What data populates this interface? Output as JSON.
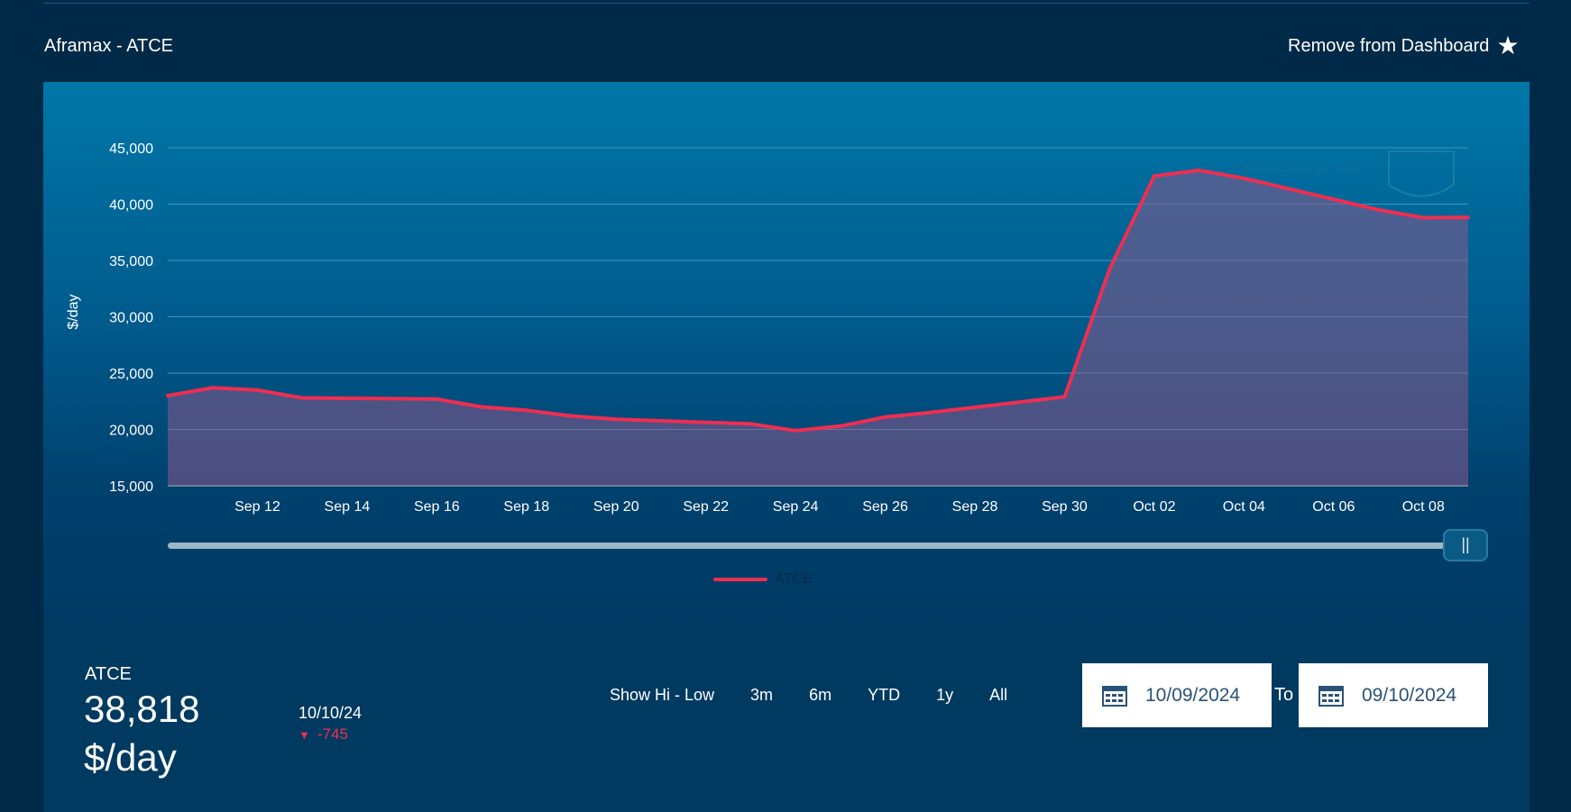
{
  "header": {
    "title": "Aframax - ATCE",
    "remove_label": "Remove from Dashboard",
    "star_icon": "star-icon"
  },
  "watermark": "balticexchange.com",
  "slider": {
    "start": 0.0,
    "end": 1.0,
    "handle_glyph": "||"
  },
  "chart_data": {
    "type": "area",
    "xlabel": "",
    "ylabel": "$/day",
    "ylim": [
      15000,
      45000
    ],
    "yticks": [
      15000,
      20000,
      25000,
      30000,
      35000,
      40000,
      45000
    ],
    "ytick_labels": [
      "15,000",
      "20,000",
      "25,000",
      "30,000",
      "35,000",
      "40,000",
      "45,000"
    ],
    "xlim": [
      "2024-09-10",
      "2024-10-09"
    ],
    "xticks": [
      "2024-09-12",
      "2024-09-14",
      "2024-09-16",
      "2024-09-18",
      "2024-09-20",
      "2024-09-22",
      "2024-09-24",
      "2024-09-26",
      "2024-09-28",
      "2024-09-30",
      "2024-10-02",
      "2024-10-04",
      "2024-10-06",
      "2024-10-08"
    ],
    "xtick_labels": [
      "Sep 12",
      "Sep 14",
      "Sep 16",
      "Sep 18",
      "Sep 20",
      "Sep 22",
      "Sep 24",
      "Sep 26",
      "Sep 28",
      "Sep 30",
      "Oct 02",
      "Oct 04",
      "Oct 06",
      "Oct 08"
    ],
    "grid": true,
    "legend_position": "bottom-center",
    "series": [
      {
        "name": "ATCE",
        "color": "#ee2e51",
        "x": [
          "2024-09-10",
          "2024-09-11",
          "2024-09-12",
          "2024-09-13",
          "2024-09-16",
          "2024-09-17",
          "2024-09-18",
          "2024-09-19",
          "2024-09-20",
          "2024-09-23",
          "2024-09-24",
          "2024-09-25",
          "2024-09-26",
          "2024-09-27",
          "2024-09-30",
          "2024-10-01",
          "2024-10-02",
          "2024-10-03",
          "2024-10-04",
          "2024-10-07",
          "2024-10-08",
          "2024-10-09"
        ],
        "values": [
          23000,
          23700,
          23500,
          22800,
          22700,
          22000,
          21700,
          21200,
          20900,
          20500,
          19900,
          20300,
          21100,
          21500,
          22900,
          34200,
          42500,
          43000,
          42300,
          39500,
          38800,
          38818
        ]
      }
    ]
  },
  "legend": {
    "label": "ATCE"
  },
  "summary": {
    "series_name": "ATCE",
    "value": "38,818",
    "unit": "$/day",
    "date": "10/10/24",
    "change": "-745",
    "change_color": "#ee2e51"
  },
  "filters": [
    "Show Hi - Low",
    "3m",
    "6m",
    "YTD",
    "1y",
    "All"
  ],
  "date_range": {
    "from": "10/09/2024",
    "to_label": "To",
    "to": "09/10/2024",
    "calendar_icon": "calendar-icon"
  }
}
